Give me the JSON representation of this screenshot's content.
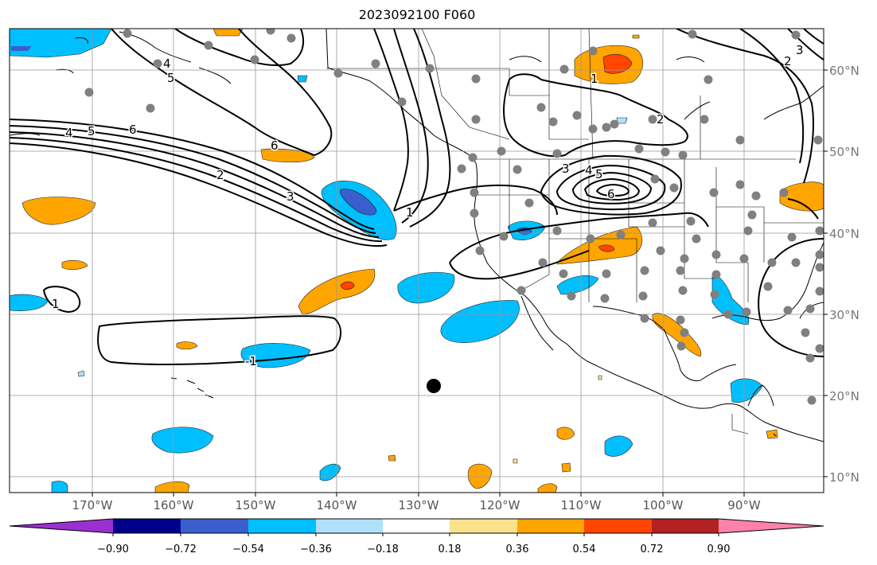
{
  "title": "2023092100 F060",
  "longitude_labels": [
    "170°W",
    "160°W",
    "150°W",
    "140°W",
    "130°W",
    "120°W",
    "110°W",
    "100°W",
    "90°W"
  ],
  "latitude_labels": [
    "10°N",
    "20°N",
    "30°N",
    "40°N",
    "50°N",
    "60°N"
  ],
  "contour_labels": [
    "6",
    "5",
    "4",
    "6",
    "2",
    "3",
    "1",
    "-1",
    "1",
    "6",
    "5",
    "4",
    "3",
    "2",
    "1",
    "4",
    "5",
    "3",
    "2"
  ],
  "colorbar": {
    "tick_labels": [
      "−0.90",
      "−0.72",
      "−0.54",
      "−0.36",
      "−0.18",
      "0.18",
      "0.36",
      "0.54",
      "0.72",
      "0.90"
    ],
    "colors": [
      "#9b30d0",
      "#00008b",
      "#3a5fcd",
      "#00bfff",
      "#b0e0fa",
      "#ffffff",
      "#fbe38e",
      "#ffa500",
      "#ff4500",
      "#b22222",
      "#ff82ab"
    ]
  }
}
